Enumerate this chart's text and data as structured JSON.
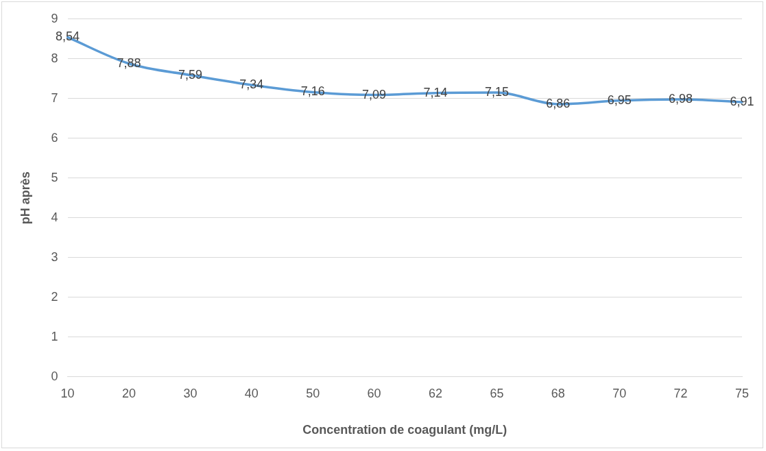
{
  "chart_data": {
    "type": "line",
    "xlabel": "Concentration de coagulant (mg/L)",
    "ylabel": "pH après",
    "categories": [
      "10",
      "20",
      "30",
      "40",
      "50",
      "60",
      "62",
      "65",
      "68",
      "70",
      "72",
      "75"
    ],
    "series": [
      {
        "color": "#5b9bd5",
        "values": [
          8.54,
          7.88,
          7.59,
          7.34,
          7.16,
          7.09,
          7.14,
          7.15,
          6.86,
          6.95,
          6.98,
          6.91
        ],
        "value_labels": [
          "8,54",
          "7,88",
          "7,59",
          "7,34",
          "7,16",
          "7,09",
          "7,14",
          "7,15",
          "6,86",
          "6,95",
          "6,98",
          "6,91"
        ]
      }
    ],
    "ylim": [
      0,
      9
    ],
    "yticks": [
      0,
      1,
      2,
      3,
      4,
      5,
      6,
      7,
      8,
      9
    ],
    "grid": "y",
    "legend": false,
    "marker": "none",
    "line_style": "solid"
  }
}
